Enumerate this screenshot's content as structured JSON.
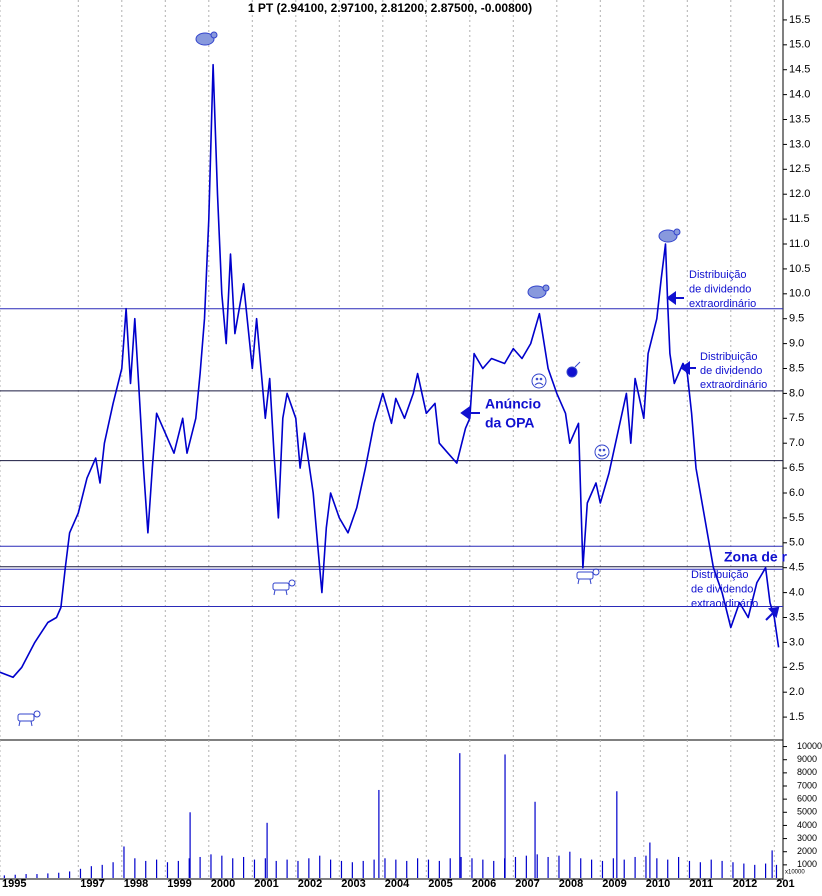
{
  "chart_data": [
    {
      "type": "line",
      "title": "1 PT (2.94100, 2.97100, 2.81200, 2.87500, -0.00800)",
      "color": "#0000cc",
      "x": [
        1995.2,
        1995.5,
        1995.7,
        1996.0,
        1996.3,
        1996.5,
        1996.6,
        1996.7,
        1996.8,
        1997.0,
        1997.2,
        1997.4,
        1997.5,
        1997.6,
        1997.8,
        1998.0,
        1998.1,
        1998.2,
        1998.3,
        1998.4,
        1998.5,
        1998.6,
        1998.7,
        1998.8,
        1999.0,
        1999.2,
        1999.4,
        1999.5,
        1999.7,
        1999.8,
        1999.9,
        2000.0,
        2000.1,
        2000.2,
        2000.3,
        2000.4,
        2000.5,
        2000.6,
        2000.8,
        2001.0,
        2001.1,
        2001.3,
        2001.4,
        2001.5,
        2001.6,
        2001.7,
        2001.8,
        2002.0,
        2002.1,
        2002.2,
        2002.4,
        2002.5,
        2002.6,
        2002.7,
        2002.8,
        2003.0,
        2003.2,
        2003.4,
        2003.6,
        2003.8,
        2004.0,
        2004.2,
        2004.3,
        2004.5,
        2004.7,
        2004.8,
        2005.0,
        2005.2,
        2005.3,
        2005.5,
        2005.7,
        2005.9,
        2006.0,
        2006.1,
        2006.3,
        2006.5,
        2006.8,
        2007.0,
        2007.2,
        2007.4,
        2007.6,
        2007.8,
        2008.0,
        2008.2,
        2008.3,
        2008.5,
        2008.6,
        2008.7,
        2008.9,
        2009.0,
        2009.2,
        2009.4,
        2009.6,
        2009.7,
        2009.8,
        2010.0,
        2010.1,
        2010.3,
        2010.4,
        2010.5,
        2010.55,
        2010.6,
        2010.7,
        2010.9,
        2011.0,
        2011.1,
        2011.2,
        2011.4,
        2011.6,
        2011.8,
        2012.0,
        2012.2,
        2012.4,
        2012.6,
        2012.8,
        2012.9,
        2013.0,
        2013.1
      ],
      "values": [
        2.4,
        2.3,
        2.5,
        3.0,
        3.4,
        3.5,
        3.7,
        4.5,
        5.2,
        5.6,
        6.3,
        6.7,
        6.2,
        7.0,
        7.8,
        8.5,
        9.7,
        8.2,
        9.5,
        8.0,
        6.5,
        5.2,
        6.5,
        7.6,
        7.2,
        6.8,
        7.5,
        6.8,
        7.5,
        8.4,
        9.5,
        11.5,
        14.6,
        12.0,
        10.0,
        9.0,
        10.8,
        9.2,
        10.2,
        8.5,
        9.5,
        7.5,
        8.3,
        6.8,
        5.5,
        7.5,
        8.0,
        7.5,
        6.5,
        7.2,
        6.0,
        5.0,
        4.0,
        5.3,
        6.0,
        5.5,
        5.2,
        5.7,
        6.5,
        7.4,
        8.0,
        7.4,
        7.9,
        7.5,
        8.0,
        8.4,
        7.6,
        7.8,
        7.0,
        6.8,
        6.6,
        7.3,
        7.5,
        8.8,
        8.5,
        8.7,
        8.6,
        8.9,
        8.7,
        9.0,
        9.6,
        8.5,
        8.0,
        7.6,
        7.0,
        7.4,
        4.5,
        5.8,
        6.2,
        5.8,
        6.4,
        7.2,
        8.0,
        7.0,
        8.3,
        7.5,
        8.8,
        9.5,
        10.3,
        11.0,
        9.8,
        8.8,
        8.2,
        8.6,
        8.4,
        7.6,
        6.5,
        5.5,
        4.5,
        4.0,
        3.3,
        3.8,
        3.5,
        4.2,
        4.5,
        3.8,
        3.5,
        2.9
      ],
      "xlim": [
        1995.2,
        2013.2
      ],
      "xticks": [
        {
          "value": 1995.2,
          "label": "1995"
        },
        1997,
        1998,
        1999,
        2000,
        2001,
        2002,
        2003,
        2004,
        2005,
        2006,
        2007,
        2008,
        2009,
        2010,
        2011,
        2012,
        {
          "value": 2013,
          "label": "201"
        }
      ],
      "ylim": [
        1.04,
        15.9
      ],
      "yticks": [
        1.5,
        {
          "value": 2,
          "label": "2.0"
        },
        2.5,
        {
          "value": 3,
          "label": "3.0"
        },
        3.5,
        {
          "value": 4,
          "label": "4.0"
        },
        4.5,
        {
          "value": 5,
          "label": "5.0"
        },
        5.5,
        {
          "value": 6,
          "label": "6.0"
        },
        6.5,
        {
          "value": 7,
          "label": "7.0"
        },
        7.5,
        {
          "value": 8,
          "label": "8.0"
        },
        8.5,
        {
          "value": 9,
          "label": "9.0"
        },
        9.5,
        {
          "value": 10,
          "label": "10.0"
        },
        10.5,
        {
          "value": 11,
          "label": "11.0"
        },
        11.5,
        {
          "value": 12,
          "label": "12.0"
        },
        12.5,
        {
          "value": 13,
          "label": "13.0"
        },
        13.5,
        {
          "value": 14,
          "label": "14.0"
        },
        14.5,
        {
          "value": 15,
          "label": "15.0"
        },
        15.5
      ],
      "hlines": [
        {
          "value": 9.7,
          "color": "#2a2ab8"
        },
        {
          "value": 8.05,
          "color": "#1a1a40"
        },
        {
          "value": 6.65,
          "color": "#1a1a40"
        },
        {
          "value": 4.93,
          "color": "#2a2ab8"
        },
        {
          "value": 4.52,
          "color": "#1a1a40"
        },
        {
          "value": 4.47,
          "color": "#2a2ab8"
        },
        {
          "value": 3.72,
          "color": "#2a2ab8"
        }
      ],
      "annotations": [
        {
          "lines": [
            "Anúncio",
            "da OPA"
          ]
        },
        {
          "lines": [
            "Distribuição",
            "de dividendo",
            "extraordinário"
          ]
        },
        {
          "lines": [
            "Distribuição",
            "de dividendo",
            "extraordinário"
          ]
        },
        {
          "lines": [
            "Zona de r"
          ]
        },
        {
          "lines": [
            "Distribuição",
            "de dividendo",
            "extraordinário"
          ]
        }
      ]
    },
    {
      "type": "bar",
      "color": "#0000cc",
      "unit_label": "x10000",
      "x": [
        1995.3,
        1995.55,
        1995.8,
        1996.05,
        1996.3,
        1996.55,
        1996.8,
        1997.05,
        1997.3,
        1997.55,
        1997.8,
        1998.05,
        1998.3,
        1998.55,
        1998.8,
        1999.05,
        1999.3,
        1999.55,
        1999.8,
        2000.05,
        2000.3,
        2000.55,
        2000.8,
        2001.05,
        2001.3,
        2001.55,
        2001.8,
        2002.05,
        2002.3,
        2002.55,
        2002.8,
        2003.05,
        2003.3,
        2003.55,
        2003.8,
        2004.05,
        2004.3,
        2004.55,
        2004.8,
        2005.05,
        2005.3,
        2005.55,
        2005.8,
        2006.05,
        2006.3,
        2006.55,
        2006.8,
        2007.05,
        2007.3,
        2007.55,
        2007.8,
        2008.05,
        2008.3,
        2008.55,
        2008.8,
        2009.05,
        2009.3,
        2009.55,
        2009.8,
        2010.05,
        2010.3,
        2010.55,
        2010.8,
        2011.05,
        2011.3,
        2011.55,
        2011.8,
        2012.05,
        2012.3,
        2012.55,
        2012.8,
        2013.05,
        1999.57,
        2001.34,
        2003.91,
        2005.77,
        2006.81,
        2007.5,
        2009.38,
        2010.14,
        2012.95
      ],
      "values": [
        200,
        250,
        300,
        300,
        350,
        400,
        500,
        700,
        900,
        1000,
        1200,
        2400,
        1500,
        1300,
        1400,
        1200,
        1300,
        1500,
        1600,
        1800,
        1700,
        1500,
        1600,
        1400,
        1500,
        1300,
        1400,
        1300,
        1500,
        1700,
        1400,
        1300,
        1200,
        1300,
        1400,
        1500,
        1400,
        1300,
        1500,
        1400,
        1300,
        1500,
        1600,
        1500,
        1400,
        1300,
        1500,
        1600,
        1700,
        1800,
        1600,
        1700,
        2000,
        1500,
        1400,
        1300,
        1500,
        1400,
        1600,
        1700,
        1500,
        1400,
        1600,
        1300,
        1200,
        1400,
        1300,
        1200,
        1100,
        1000,
        1100,
        1000,
        5000,
        4200,
        6700,
        9500,
        9400,
        5800,
        6600,
        2700,
        2100
      ],
      "ylim": [
        0,
        10500
      ],
      "yticks": [
        1000,
        2000,
        3000,
        4000,
        5000,
        6000,
        7000,
        8000,
        9000,
        10000
      ]
    }
  ]
}
